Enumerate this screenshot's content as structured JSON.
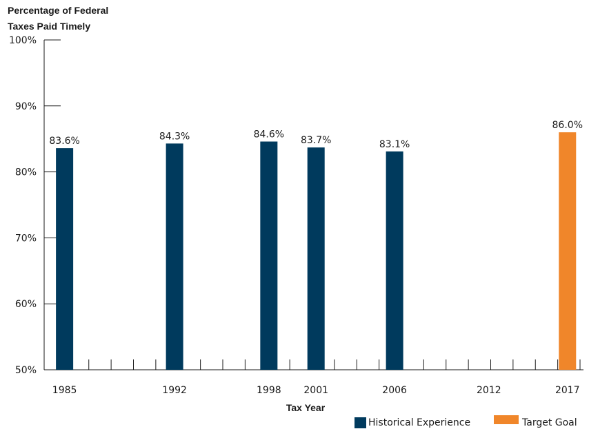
{
  "chart_data": {
    "type": "bar",
    "ylabel": [
      "Percentage of Federal",
      "Taxes Paid Timely"
    ],
    "xlabel": "Tax Year",
    "ylim": [
      50,
      100
    ],
    "x_range": [
      1983.7,
      2017.8
    ],
    "y_ticks": [
      "100%",
      "90%",
      "80%",
      "70%",
      "60%",
      "50%"
    ],
    "y_tick_values": [
      100,
      90,
      80,
      70,
      60,
      50
    ],
    "x_tick_labels": [
      "1985",
      "1992",
      "1998",
      "2001",
      "2006",
      "2012",
      "2017"
    ],
    "x_tick_values": [
      1985,
      1992,
      1998,
      2001,
      2006,
      2012,
      2017
    ],
    "series": [
      {
        "name": "Historical Experience",
        "color": "#003a5d",
        "points": [
          {
            "x": 1985,
            "y": 83.6,
            "label": "83.6%"
          },
          {
            "x": 1992,
            "y": 84.3,
            "label": "84.3%"
          },
          {
            "x": 1998,
            "y": 84.6,
            "label": "84.6%"
          },
          {
            "x": 2001,
            "y": 83.7,
            "label": "83.7%"
          },
          {
            "x": 2006,
            "y": 83.1,
            "label": "83.1%"
          }
        ]
      },
      {
        "name": "Target Goal",
        "color": "#f0862a",
        "points": [
          {
            "x": 2017,
            "y": 86.0,
            "label": "86.0%"
          }
        ]
      }
    ],
    "legend_position": "bottom-right",
    "grid": false
  }
}
